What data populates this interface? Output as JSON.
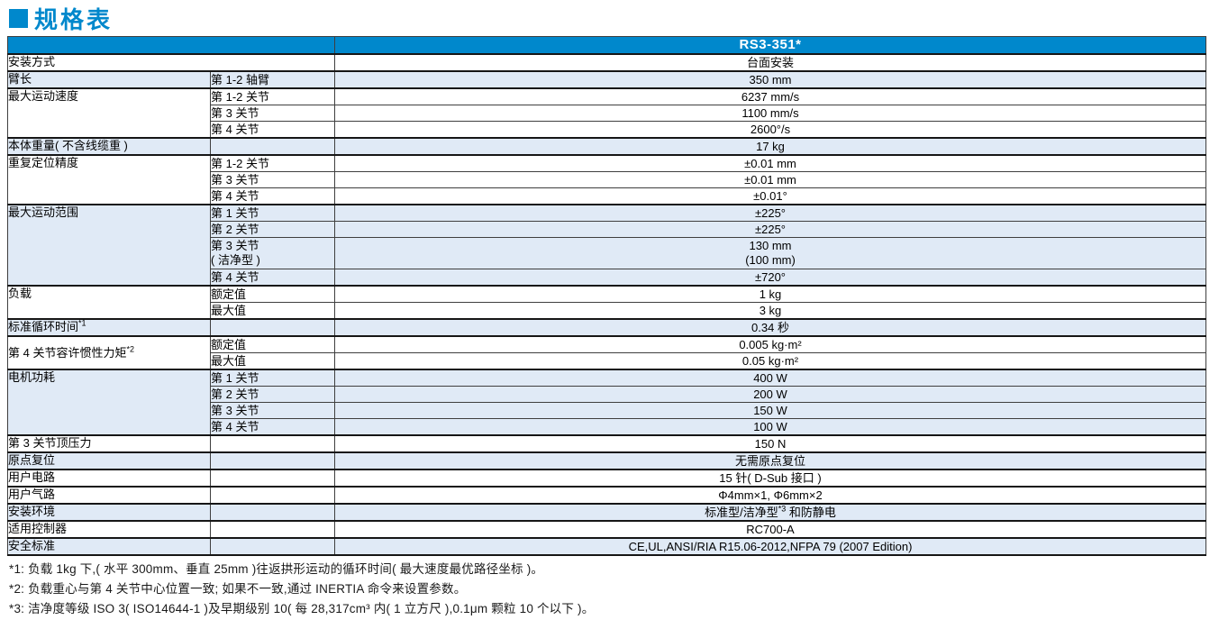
{
  "title": "规格表",
  "colors": {
    "brand_blue": "#0088cc",
    "row_highlight": "#e0eaf6",
    "border_dark": "#161616",
    "header_text": "#ffffff"
  },
  "table": {
    "header_model": "RS3-351*",
    "groups": [
      {
        "label": "安装方式",
        "merged": true,
        "shaded": false,
        "rows": [
          {
            "value": "台面安装"
          }
        ]
      },
      {
        "label": "臂长",
        "shaded": true,
        "rows": [
          {
            "sub": "第 1-2 轴臂",
            "value": "350 mm"
          }
        ]
      },
      {
        "label": "最大运动速度",
        "shaded": false,
        "rows": [
          {
            "sub": "第 1-2 关节",
            "value": "6237 mm/s"
          },
          {
            "sub": "第 3 关节",
            "value": "1100 mm/s"
          },
          {
            "sub": "第 4 关节",
            "value": "2600°/s"
          }
        ]
      },
      {
        "label": "本体重量( 不含线缆重 )",
        "shaded": true,
        "rows": [
          {
            "sub": "",
            "value": "17 kg"
          }
        ]
      },
      {
        "label": "重复定位精度",
        "shaded": false,
        "rows": [
          {
            "sub": "第 1-2 关节",
            "value": "±0.01 mm"
          },
          {
            "sub": "第 3 关节",
            "value": "±0.01 mm"
          },
          {
            "sub": "第 4 关节",
            "value": "±0.01°"
          }
        ]
      },
      {
        "label": "最大运动范围",
        "shaded": true,
        "rows": [
          {
            "sub": "第 1 关节",
            "value": "±225°"
          },
          {
            "sub": "第 2 关节",
            "value": "±225°"
          },
          {
            "sub": "第 3 关节",
            "sub_line2": "( 洁净型 )",
            "value": "130 mm",
            "value_line2": "(100 mm)",
            "tall": true
          },
          {
            "sub": "第 4 关节",
            "value": "±720°"
          }
        ]
      },
      {
        "label": "负载",
        "shaded": false,
        "rows": [
          {
            "sub": "额定值",
            "value": "1 kg"
          },
          {
            "sub": "最大值",
            "value": "3 kg"
          }
        ]
      },
      {
        "label": "标准循环时间",
        "label_sup": "*1",
        "shaded": true,
        "rows": [
          {
            "sub": "",
            "value": "0.34 秒"
          }
        ]
      },
      {
        "label": "第 4 关节容许惯性力矩",
        "label_sup": "*2",
        "label_middle": true,
        "shaded": false,
        "rows": [
          {
            "sub": "额定值",
            "value": "0.005 kg·m²"
          },
          {
            "sub": "最大值",
            "value": "0.05 kg·m²"
          }
        ]
      },
      {
        "label": "电机功耗",
        "shaded": true,
        "rows": [
          {
            "sub": "第 1 关节",
            "value": "400 W"
          },
          {
            "sub": "第 2 关节",
            "value": "200 W"
          },
          {
            "sub": "第 3 关节",
            "value": "150 W"
          },
          {
            "sub": "第 4 关节",
            "value": "100 W"
          }
        ]
      },
      {
        "label": "第 3 关节顶压力",
        "shaded": false,
        "rows": [
          {
            "sub": "",
            "value": "150 N"
          }
        ]
      },
      {
        "label": "原点复位",
        "shaded": true,
        "rows": [
          {
            "sub": "",
            "value": "无需原点复位"
          }
        ]
      },
      {
        "label": "用户电路",
        "shaded": false,
        "rows": [
          {
            "sub": "",
            "value": "15 针( D-Sub 接口 )"
          }
        ]
      },
      {
        "label": "用户气路",
        "shaded": false,
        "rows": [
          {
            "sub": "",
            "value": "Φ4mm×1, Φ6mm×2"
          }
        ]
      },
      {
        "label": "安装环境",
        "shaded": true,
        "rows": [
          {
            "sub": "",
            "value": "标准型/洁净型",
            "value_sup": "*3",
            "value_tail": " 和防静电"
          }
        ]
      },
      {
        "label": "适用控制器",
        "shaded": false,
        "rows": [
          {
            "sub": "",
            "value": "RC700-A"
          }
        ]
      },
      {
        "label": "安全标准",
        "shaded": true,
        "rows": [
          {
            "sub": "",
            "value": "CE,UL,ANSI/RIA R15.06-2012,NFPA 79 (2007 Edition)"
          }
        ]
      }
    ]
  },
  "footnotes": [
    "*1: 负载 1kg 下,( 水平 300mm、垂直 25mm )往返拱形运动的循环时间( 最大速度最优路径坐标 )。",
    "*2: 负载重心与第 4 关节中心位置一致; 如果不一致,通过 INERTIA 命令来设置参数。",
    "*3: 洁净度等级 ISO 3( ISO14644-1 )及早期级别 10( 每 28,317cm³ 内( 1 立方尺 ),0.1μm 颗粒 10 个以下 )。"
  ]
}
